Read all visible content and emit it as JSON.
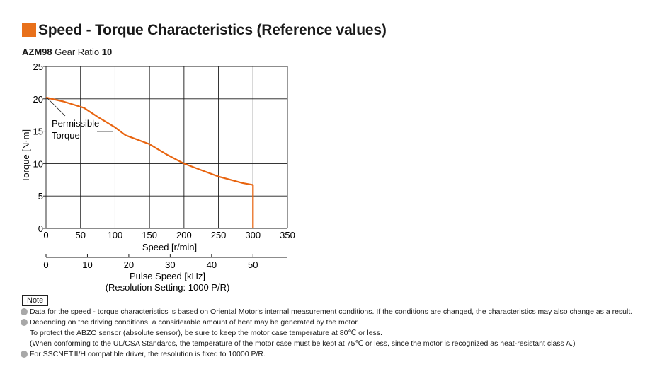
{
  "title": "Speed - Torque Characteristics (Reference values)",
  "subtitle": {
    "model": "AZM98",
    "text": "Gear Ratio",
    "ratio": "10"
  },
  "chart_data": {
    "type": "line",
    "xlabel": "Speed [r/min]",
    "ylabel": "Torque [N·m]",
    "xlim": [
      0,
      350
    ],
    "ylim": [
      0,
      25
    ],
    "x_ticks": [
      0,
      50,
      100,
      150,
      200,
      250,
      300,
      350
    ],
    "y_ticks": [
      0,
      5,
      10,
      15,
      20,
      25
    ],
    "grid": true,
    "secondary_axis": {
      "label": "Pulse Speed [kHz]",
      "label2": "(Resolution Setting: 1000 P/R)",
      "ticks": [
        0,
        10,
        20,
        30,
        40,
        50
      ]
    },
    "series": [
      {
        "name": "Permissible Torque",
        "x": [
          0,
          25,
          55,
          75,
          100,
          115,
          125,
          150,
          175,
          200,
          225,
          250,
          285,
          300,
          300
        ],
        "y": [
          20.2,
          19.6,
          18.6,
          17.2,
          15.6,
          14.4,
          14.0,
          13.0,
          11.4,
          10.0,
          9.0,
          8.0,
          7.0,
          6.7,
          0
        ]
      }
    ],
    "annotations": [
      {
        "text": "Permissible",
        "text2": "Torque"
      }
    ],
    "line_color": "#e8640f"
  },
  "note": {
    "label": "Note",
    "items": [
      {
        "text": "Data for the speed - torque characteristics is based on Oriental Motor's internal measurement conditions. If the conditions are changed, the characteristics may also change as a result."
      },
      {
        "text": "Depending on the driving conditions, a considerable amount of heat may be generated by the motor.",
        "sub": [
          "To protect the ABZO sensor (absolute sensor), be sure to keep the motor case temperature at 80℃ or less.",
          "(When conforming to the UL/CSA Standards, the temperature of the motor case must be kept at 75℃ or less, since the motor is recognized as heat-resistant class A.)"
        ]
      },
      {
        "text": "For SSCNETⅢ/H compatible driver, the resolution is fixed to 10000 P/R."
      }
    ]
  }
}
